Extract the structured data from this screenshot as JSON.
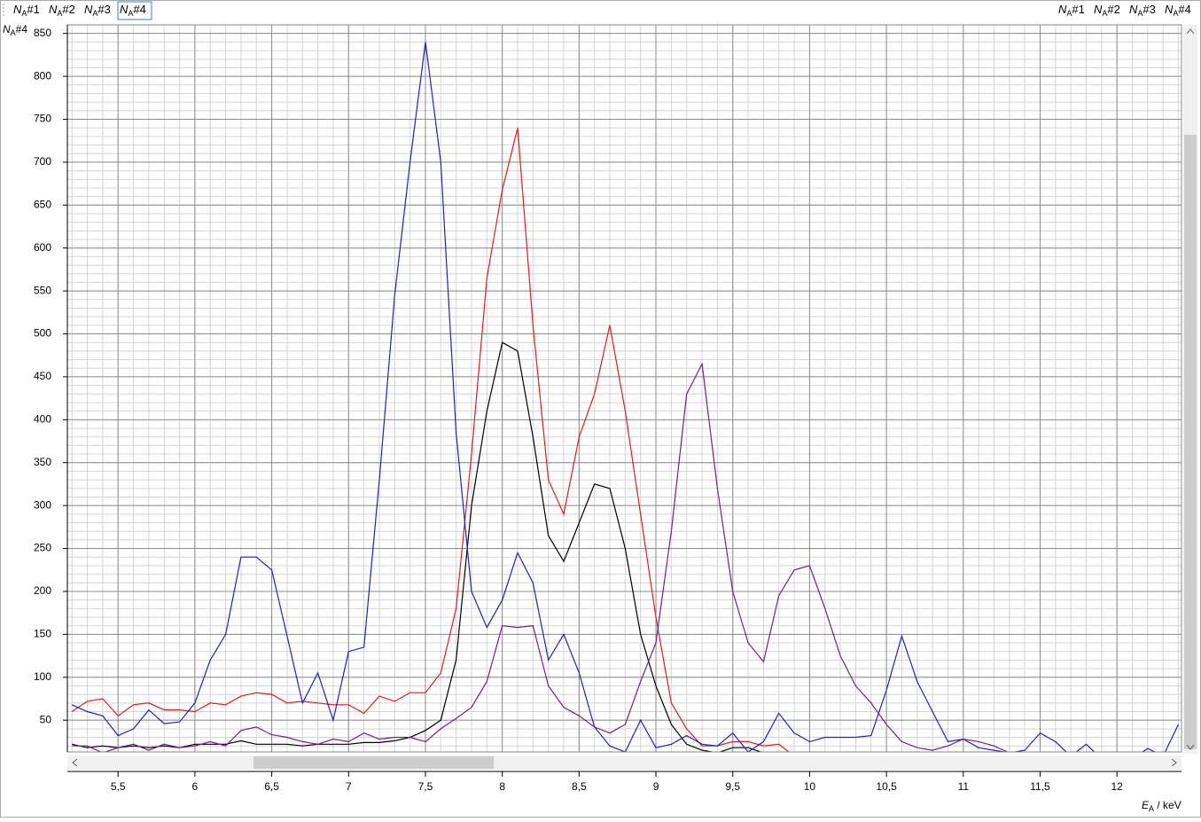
{
  "chart_data": {
    "type": "line",
    "y_label": "NA#4",
    "x_label": "EA / keV",
    "x": [
      5.2,
      5.3,
      5.4,
      5.5,
      5.6,
      5.7,
      5.8,
      5.9,
      6.0,
      6.1,
      6.2,
      6.3,
      6.4,
      6.5,
      6.6,
      6.7,
      6.8,
      6.9,
      7.0,
      7.1,
      7.2,
      7.3,
      7.4,
      7.5,
      7.6,
      7.7,
      7.8,
      7.9,
      8.0,
      8.1,
      8.2,
      8.3,
      8.4,
      8.5,
      8.6,
      8.7,
      8.8,
      8.9,
      9.0,
      9.1,
      9.2,
      9.3,
      9.4,
      9.5,
      9.6,
      9.7,
      9.8,
      9.9,
      10.0,
      10.1,
      10.2,
      10.3,
      10.4,
      10.5,
      10.6,
      10.7,
      10.8,
      10.9,
      11.0,
      11.1,
      11.2,
      11.3,
      11.4,
      11.5,
      11.6,
      11.7,
      11.8,
      11.9,
      12.0,
      12.1,
      12.2,
      12.3,
      12.4
    ],
    "series": [
      {
        "name": "NA#1",
        "color": "#000000",
        "values": [
          22,
          18,
          20,
          18,
          20,
          18,
          20,
          18,
          22,
          22,
          22,
          26,
          22,
          22,
          22,
          20,
          22,
          22,
          22,
          24,
          24,
          26,
          30,
          38,
          50,
          120,
          300,
          410,
          490,
          480,
          380,
          265,
          235,
          280,
          325,
          320,
          250,
          150,
          90,
          45,
          22,
          15,
          12,
          18,
          18,
          12,
          8,
          null,
          null,
          null,
          null,
          null,
          null,
          null,
          null,
          null,
          null,
          null,
          null,
          null,
          null,
          null,
          null,
          null,
          null,
          null,
          null,
          null,
          null,
          null,
          null,
          null,
          null
        ]
      },
      {
        "name": "NA#2",
        "color": "#e8191a",
        "values": [
          60,
          72,
          75,
          55,
          68,
          70,
          62,
          62,
          60,
          70,
          68,
          78,
          82,
          80,
          70,
          72,
          70,
          68,
          68,
          58,
          78,
          72,
          82,
          82,
          105,
          180,
          360,
          565,
          668,
          740,
          510,
          330,
          290,
          380,
          430,
          510,
          410,
          290,
          170,
          70,
          40,
          20,
          20,
          25,
          25,
          20,
          22,
          8,
          null,
          null,
          null,
          null,
          null,
          null,
          null,
          null,
          null,
          null,
          null,
          null,
          null,
          null,
          null,
          null,
          null,
          null,
          null,
          null,
          null,
          null,
          null,
          null,
          null
        ]
      },
      {
        "name": "NA#3",
        "color": "#1c22c8",
        "values": [
          68,
          60,
          55,
          32,
          40,
          62,
          46,
          48,
          70,
          120,
          150,
          240,
          240,
          225,
          148,
          70,
          105,
          50,
          130,
          135,
          330,
          545,
          700,
          840,
          700,
          385,
          200,
          158,
          190,
          245,
          210,
          120,
          150,
          105,
          42,
          20,
          13,
          50,
          18,
          22,
          32,
          22,
          20,
          35,
          13,
          25,
          58,
          35,
          25,
          30,
          30,
          30,
          32,
          85,
          148,
          95,
          60,
          25,
          28,
          18,
          15,
          12,
          15,
          35,
          25,
          8,
          22,
          5,
          13,
          5,
          17,
          8,
          45
        ]
      },
      {
        "name": "NA#4",
        "color": "#7a1c8a",
        "values": [
          20,
          20,
          12,
          18,
          22,
          15,
          22,
          18,
          20,
          25,
          20,
          38,
          42,
          33,
          30,
          25,
          22,
          28,
          25,
          35,
          28,
          30,
          30,
          25,
          40,
          52,
          65,
          95,
          160,
          158,
          160,
          90,
          65,
          55,
          42,
          35,
          45,
          95,
          140,
          270,
          430,
          465,
          320,
          200,
          140,
          118,
          195,
          225,
          230,
          180,
          125,
          90,
          70,
          45,
          25,
          18,
          15,
          20,
          28,
          25,
          20,
          12,
          10,
          12,
          10,
          null,
          null,
          null,
          null,
          null,
          null,
          null,
          null
        ]
      }
    ],
    "xlim": [
      5.17,
      12.42
    ],
    "ylim": [
      13,
      860
    ],
    "xticks": [
      {
        "value": 5.5,
        "label": "5,5"
      },
      6,
      {
        "value": 6.5,
        "label": "6,5"
      },
      7,
      {
        "value": 7.5,
        "label": "7,5"
      },
      8,
      {
        "value": 8.5,
        "label": "8,5"
      },
      9,
      {
        "value": 9.5,
        "label": "9,5"
      },
      10,
      {
        "value": 10.5,
        "label": "10,5"
      },
      11,
      {
        "value": 11.5,
        "label": "11,5"
      },
      12
    ],
    "yticks": [
      50,
      100,
      150,
      200,
      250,
      300,
      350,
      400,
      450,
      500,
      550,
      600,
      650,
      700,
      750,
      800,
      850
    ],
    "grid": true
  }
}
